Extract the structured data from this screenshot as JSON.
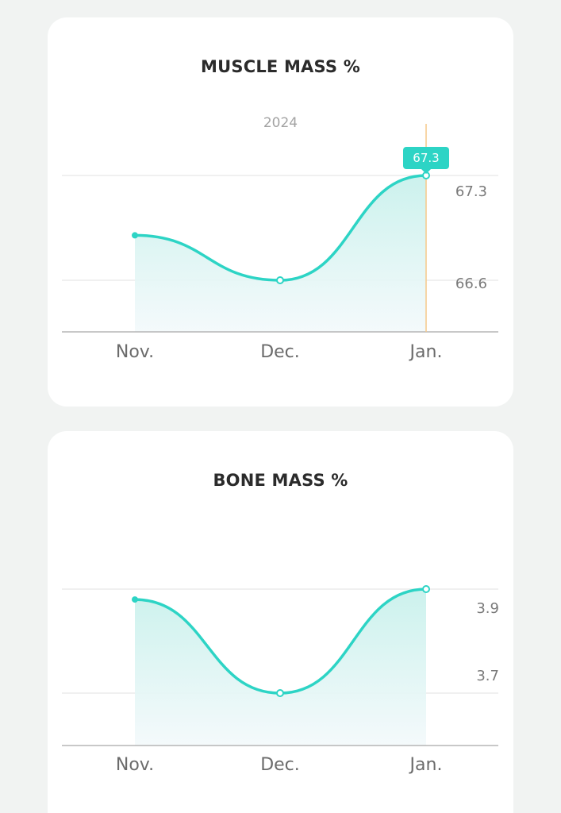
{
  "colors": {
    "line": "#2dd4c5",
    "fill_top": "#c9f1ec",
    "fill_bottom": "#f3f9fb",
    "grid": "#e6e6e6",
    "axis": "#b5b5b5",
    "cursor": "#f5c98a",
    "tooltip_bg": "#2dd4c5",
    "card_bg": "#ffffff",
    "page_bg": "#f1f3f2"
  },
  "chart_data": [
    {
      "type": "line",
      "title": "MUSCLE MASS %",
      "subtitle": "2024",
      "categories": [
        "Nov.",
        "Dec.",
        "Jan."
      ],
      "series": [
        {
          "values": [
            66.9,
            66.6,
            67.3
          ]
        }
      ],
      "y_ticks": [
        "67.3",
        "66.6"
      ],
      "selected_index": 2,
      "tooltip": "67.3",
      "smooth": true,
      "area_fill": true
    },
    {
      "type": "line",
      "title": "BONE MASS %",
      "categories": [
        "Nov.",
        "Dec.",
        "Jan."
      ],
      "series": [
        {
          "values": [
            3.88,
            3.7,
            3.9
          ]
        }
      ],
      "y_ticks": [
        "3.9",
        "3.7"
      ],
      "smooth": true,
      "area_fill": true
    }
  ]
}
